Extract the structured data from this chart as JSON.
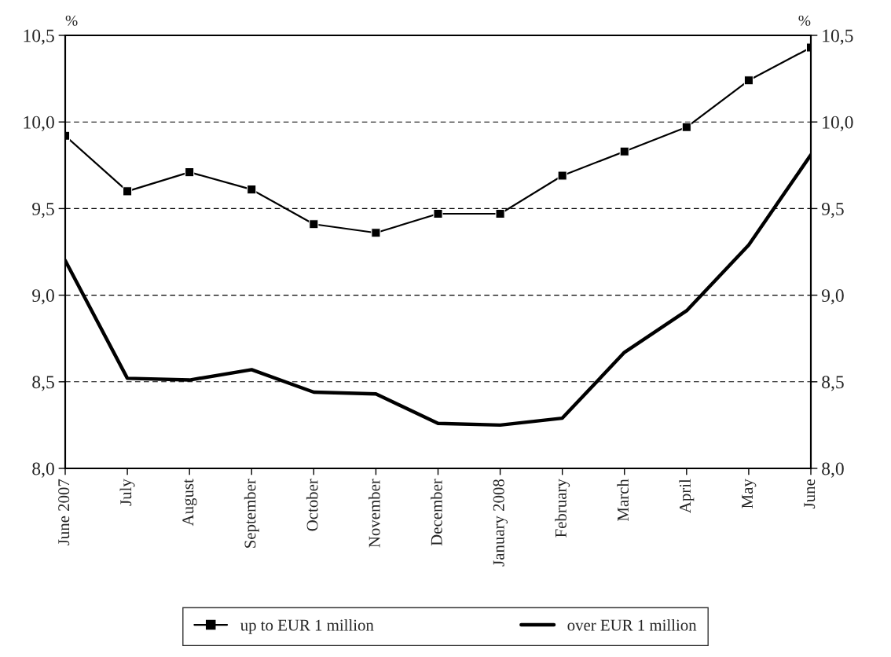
{
  "chart_data": {
    "type": "line",
    "categories": [
      "June 2007",
      "July",
      "August",
      "September",
      "October",
      "November",
      "December",
      "January 2008",
      "February",
      "March",
      "April",
      "May",
      "June"
    ],
    "series": [
      {
        "name": "up to EUR 1 million",
        "color": "#000000",
        "marker": "square",
        "values": [
          9.92,
          9.6,
          9.71,
          9.61,
          9.41,
          9.36,
          9.47,
          9.47,
          9.69,
          9.83,
          9.97,
          10.24,
          10.43
        ]
      },
      {
        "name": "over EUR 1 million",
        "color": "#000000",
        "marker": "none",
        "values": [
          9.2,
          8.52,
          8.51,
          8.57,
          8.44,
          8.43,
          8.26,
          8.25,
          8.29,
          8.67,
          8.91,
          9.29,
          9.81
        ]
      }
    ],
    "ylabel": "%",
    "y2label": "%",
    "ylim": [
      8.0,
      10.5
    ],
    "yticks": [
      {
        "value": 8.0,
        "label": "8,0"
      },
      {
        "value": 8.5,
        "label": "8,5"
      },
      {
        "value": 9.0,
        "label": "9,0"
      },
      {
        "value": 9.5,
        "label": "9,5"
      },
      {
        "value": 10.0,
        "label": "10,0"
      },
      {
        "value": 10.5,
        "label": "10,5"
      }
    ],
    "y2lim": [
      8.0,
      10.5
    ],
    "y2ticks": [
      {
        "value": 8.0,
        "label": "8,0"
      },
      {
        "value": 8.5,
        "label": "8,5"
      },
      {
        "value": 9.0,
        "label": "9,0"
      },
      {
        "value": 9.5,
        "label": "9,5"
      },
      {
        "value": 10.0,
        "label": "10,0"
      },
      {
        "value": 10.5,
        "label": "10,5"
      }
    ],
    "grid": "y",
    "line_style": "solid",
    "legend": "bottom"
  }
}
